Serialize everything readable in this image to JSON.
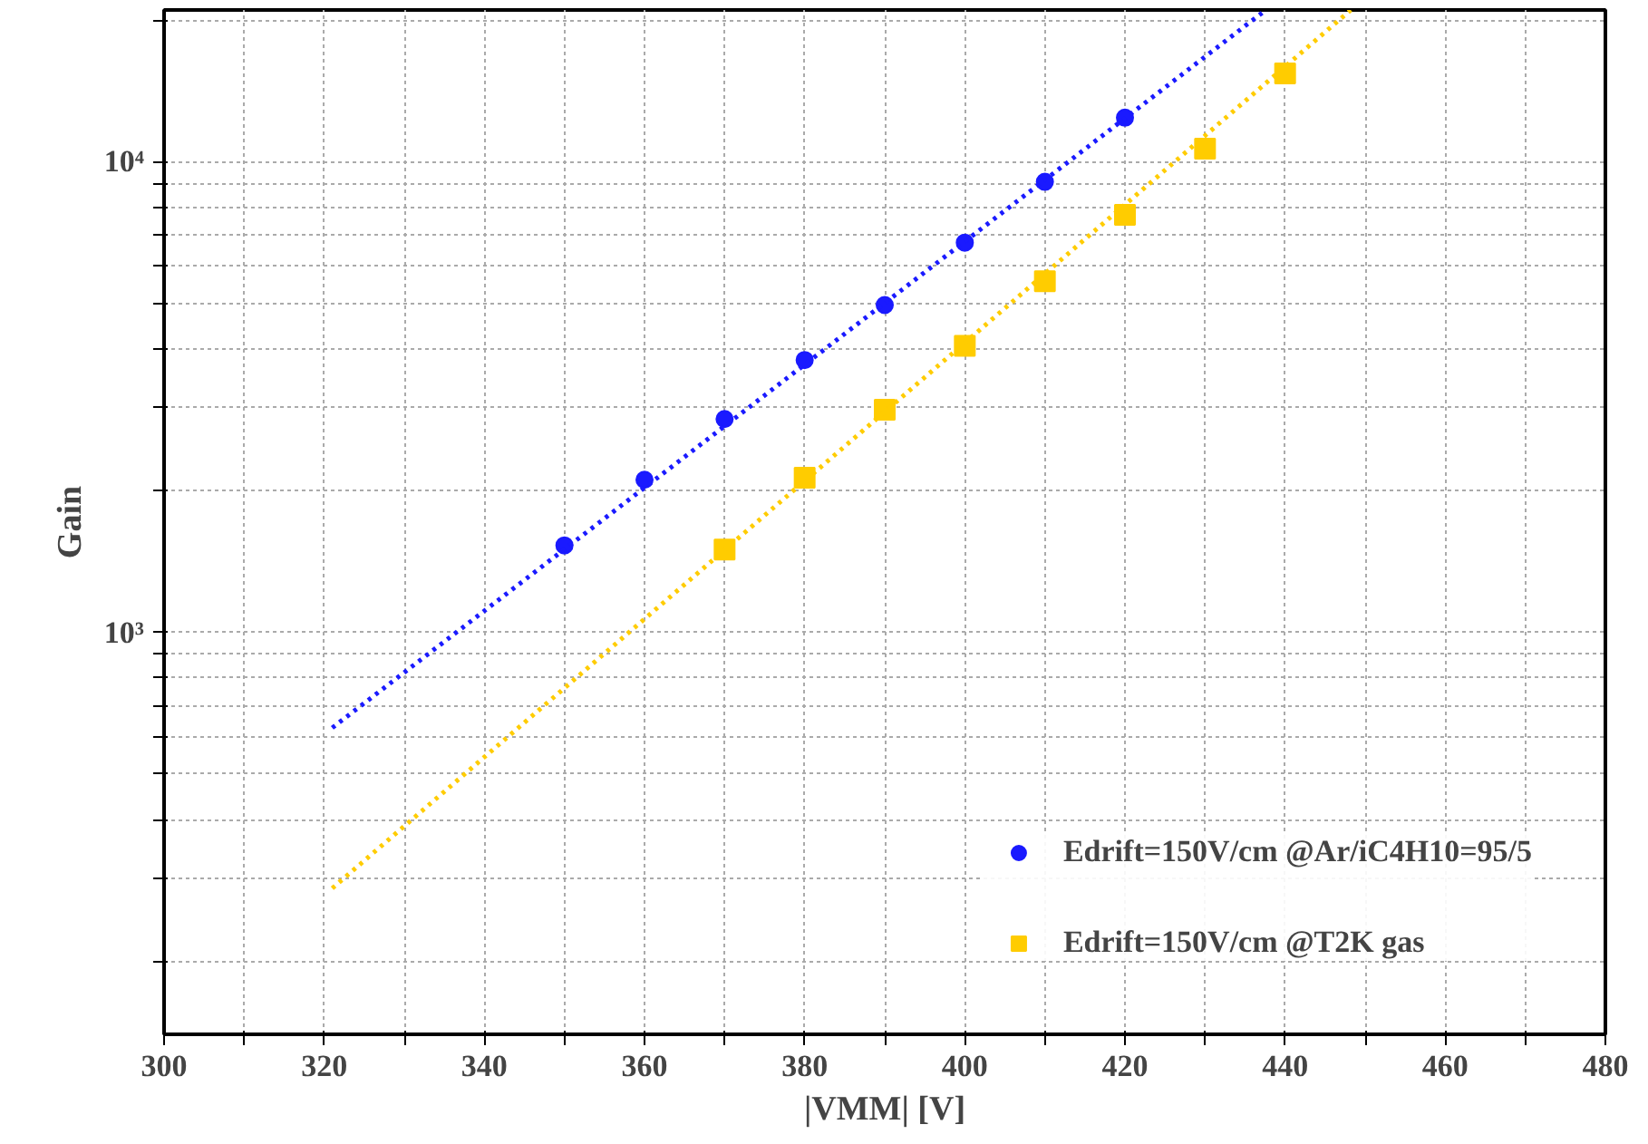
{
  "chart_data": {
    "type": "scatter",
    "xlabel": "|VMM| [V]",
    "ylabel": "Gain",
    "xlim": [
      300,
      480
    ],
    "ylim": [
      140,
      21000
    ],
    "log": "y",
    "grid": true,
    "legend": "bottom right",
    "xticks": [
      300,
      {
        "value": 310,
        "label": null
      },
      320,
      {
        "value": 330,
        "label": null
      },
      340,
      {
        "value": 350,
        "label": null
      },
      360,
      {
        "value": 370,
        "label": null
      },
      380,
      {
        "value": 390,
        "label": null
      },
      400,
      {
        "value": 410,
        "label": null
      },
      420,
      {
        "value": 430,
        "label": null
      },
      440,
      {
        "value": 450,
        "label": null
      },
      460,
      {
        "value": 470,
        "label": null
      },
      480
    ],
    "yticks": [
      {
        "value": 200,
        "label": null
      },
      {
        "value": 300,
        "label": null
      },
      {
        "value": 400,
        "label": null
      },
      {
        "value": 500,
        "label": null
      },
      {
        "value": 600,
        "label": null
      },
      {
        "value": 700,
        "label": null
      },
      {
        "value": 800,
        "label": null
      },
      {
        "value": 900,
        "label": null
      },
      {
        "value": 1000,
        "label": "10³"
      },
      {
        "value": 2000,
        "label": null
      },
      {
        "value": 3000,
        "label": null
      },
      {
        "value": 4000,
        "label": null
      },
      {
        "value": 5000,
        "label": null
      },
      {
        "value": 6000,
        "label": null
      },
      {
        "value": 7000,
        "label": null
      },
      {
        "value": 8000,
        "label": null
      },
      {
        "value": 9000,
        "label": null
      },
      {
        "value": 10000,
        "label": "10⁴"
      },
      {
        "value": 20000,
        "label": null
      }
    ],
    "series": [
      {
        "name": "Edrift=150V/cm @Ar/iC4H10=95/5",
        "color": "#1a1aff",
        "marker": "circle",
        "x": [
          350,
          360,
          370,
          380,
          390,
          400,
          410,
          420
        ],
        "values": [
          1530,
          2110,
          2840,
          3790,
          4960,
          6730,
          9060,
          12400
        ]
      },
      {
        "name": "Edrift=150V/cm @T2K gas",
        "color": "#ffcc00",
        "marker": "square",
        "x": [
          370,
          380,
          390,
          400,
          410,
          420,
          430,
          440
        ],
        "values": [
          1500,
          2130,
          2970,
          4060,
          5570,
          7710,
          10650,
          15400
        ]
      },
      {
        "type": "line",
        "line_style": "dotted",
        "color": "#1a1aff",
        "x": [
          321,
          437.6
        ],
        "values": [
          627,
          21000
        ]
      },
      {
        "type": "line",
        "line_style": "dotted",
        "color": "#ffcc00",
        "x": [
          321,
          448.2
        ],
        "values": [
          286,
          21000
        ]
      }
    ]
  }
}
